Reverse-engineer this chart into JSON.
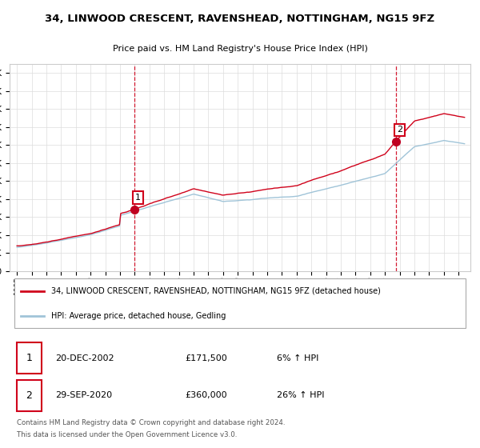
{
  "title": "34, LINWOOD CRESCENT, RAVENSHEAD, NOTTINGHAM, NG15 9FZ",
  "subtitle": "Price paid vs. HM Land Registry's House Price Index (HPI)",
  "legend_line1": "34, LINWOOD CRESCENT, RAVENSHEAD, NOTTINGHAM, NG15 9FZ (detached house)",
  "legend_line2": "HPI: Average price, detached house, Gedling",
  "footnote1": "Contains HM Land Registry data © Crown copyright and database right 2024.",
  "footnote2": "This data is licensed under the Open Government Licence v3.0.",
  "transaction1_num": "1",
  "transaction1_date": "20-DEC-2002",
  "transaction1_price": "£171,500",
  "transaction1_hpi": "6% ↑ HPI",
  "transaction2_num": "2",
  "transaction2_date": "29-SEP-2020",
  "transaction2_price": "£360,000",
  "transaction2_hpi": "26% ↑ HPI",
  "line_color_red": "#d0021b",
  "line_color_blue": "#a0c4d8",
  "marker_color_red": "#c00020",
  "ylim": [
    0,
    575000
  ],
  "yticks": [
    0,
    50000,
    100000,
    150000,
    200000,
    250000,
    300000,
    350000,
    400000,
    450000,
    500000,
    550000
  ],
  "x_start_year": 1995,
  "x_end_year": 2025,
  "transaction1_year": 2002.96,
  "transaction1_value": 171500,
  "transaction2_year": 2020.75,
  "transaction2_value": 360000,
  "background_color": "#ffffff",
  "grid_color": "#dddddd",
  "n_points": 372
}
